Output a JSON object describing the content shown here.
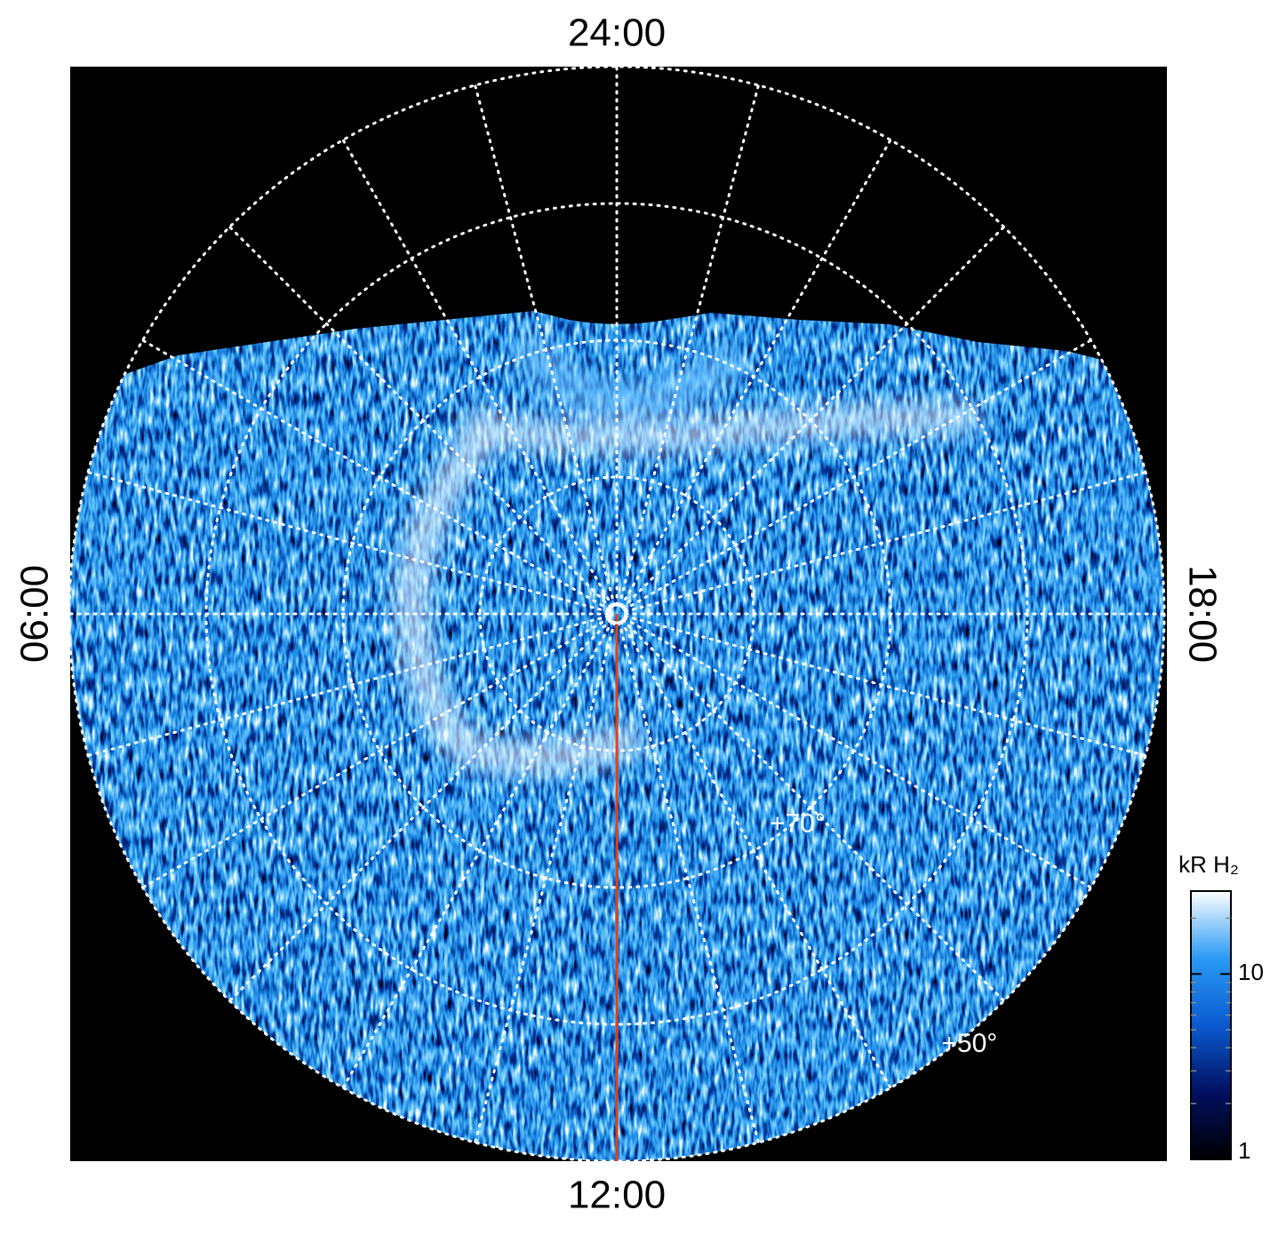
{
  "chart_data": {
    "type": "polar-image",
    "local_time_labels": {
      "top": "24:00",
      "left": "06:00",
      "right": "18:00",
      "bottom": "12:00"
    },
    "latitude_labels": [
      {
        "value": 70,
        "label": "+70°"
      },
      {
        "value": 50,
        "label": "+50°"
      }
    ],
    "colorbar": {
      "title": "kR H₂",
      "scale": "log",
      "clim": [
        1,
        28
      ],
      "ticks": [
        1,
        10
      ],
      "colors": [
        "#000000",
        "#001060",
        "#0a5ad0",
        "#2a9af5",
        "#ffffff"
      ]
    }
  }
}
